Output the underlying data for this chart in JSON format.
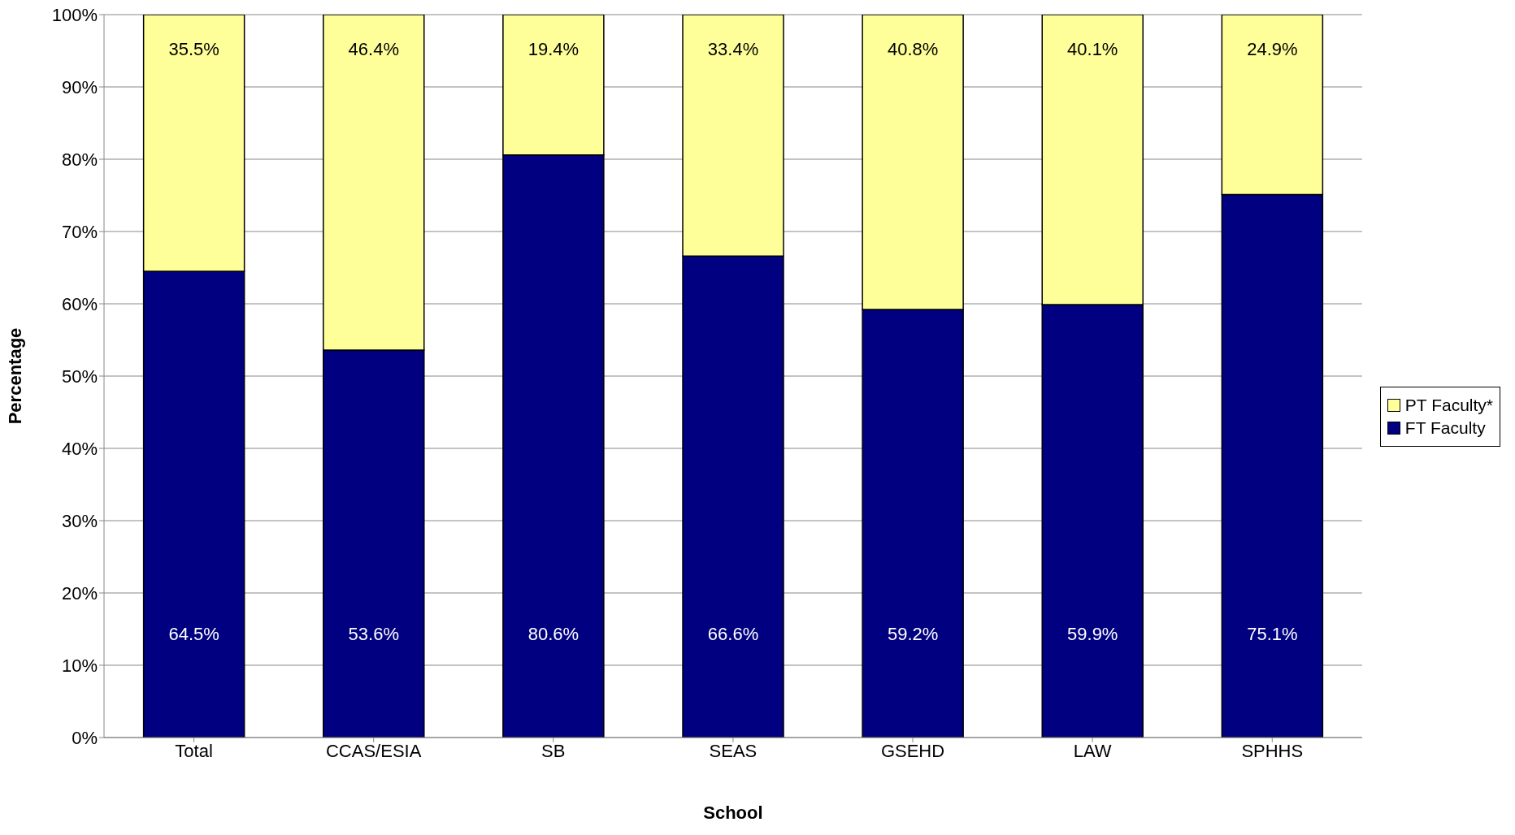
{
  "chart_data": {
    "type": "bar",
    "stacked": true,
    "xlabel": "School",
    "ylabel": "Percentage",
    "categories": [
      "Total",
      "CCAS/ESIA",
      "SB",
      "SEAS",
      "GSEHD",
      "LAW",
      "SPHHS"
    ],
    "series": [
      {
        "name": "FT Faculty",
        "color": "#000080",
        "values": [
          64.5,
          53.6,
          80.6,
          66.6,
          59.2,
          59.9,
          75.1
        ],
        "value_labels": [
          "64.5%",
          "53.6%",
          "80.6%",
          "66.6%",
          "59.2%",
          "59.9%",
          "75.1%"
        ]
      },
      {
        "name": "PT Faculty*",
        "color": "#ffff99",
        "values": [
          35.5,
          46.4,
          19.4,
          33.4,
          40.8,
          40.1,
          24.9
        ],
        "value_labels": [
          "35.5%",
          "46.4%",
          "19.4%",
          "33.4%",
          "40.8%",
          "40.1%",
          "24.9%"
        ]
      }
    ],
    "ylim": [
      0,
      100
    ],
    "yticks": [
      {
        "value": 0,
        "label": "0%"
      },
      {
        "value": 10,
        "label": "10%"
      },
      {
        "value": 20,
        "label": "20%"
      },
      {
        "value": 30,
        "label": "30%"
      },
      {
        "value": 40,
        "label": "40%"
      },
      {
        "value": 50,
        "label": "50%"
      },
      {
        "value": 60,
        "label": "60%"
      },
      {
        "value": 70,
        "label": "70%"
      },
      {
        "value": 80,
        "label": "80%"
      },
      {
        "value": 90,
        "label": "90%"
      },
      {
        "value": 100,
        "label": "100%"
      }
    ],
    "grid": "y",
    "legend": "right"
  }
}
